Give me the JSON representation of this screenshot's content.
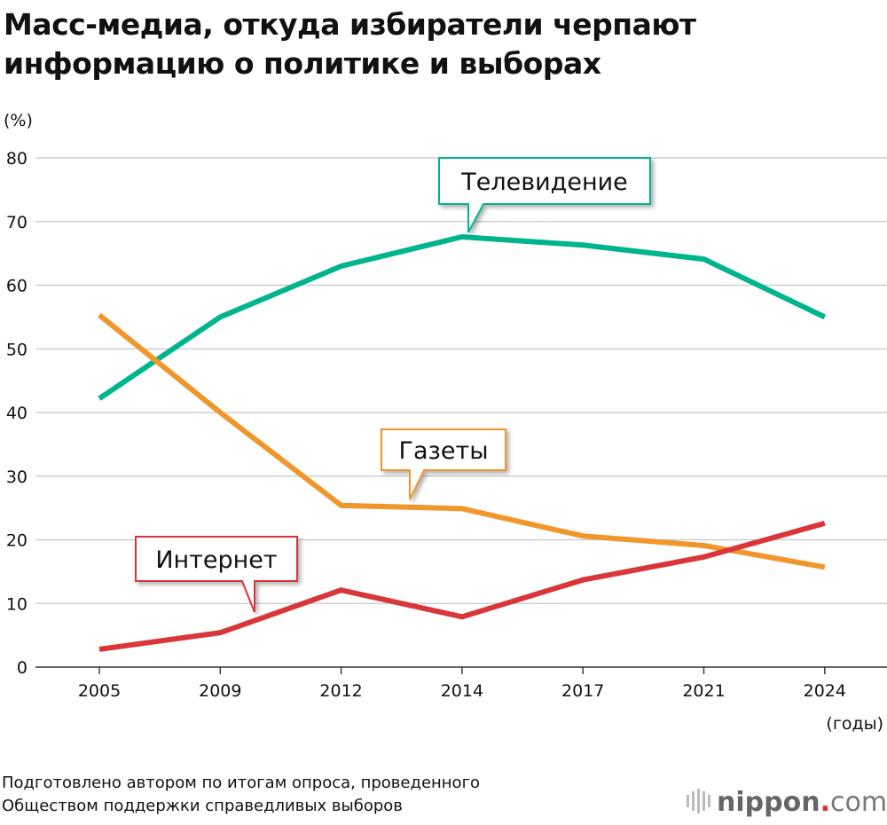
{
  "title_line1": "Масс-медиа, откуда избиратели черпают",
  "title_line2": "информацию о политике и выборах",
  "source_line1": "Подготовлено автором по итогам опроса, проведенного",
  "source_line2": "Обществом поддержки справедливых выборов",
  "logo": "nippon.com",
  "chart_data": {
    "type": "line",
    "ylabel": "(%)",
    "xlabel": "(годы)",
    "ylim": [
      0,
      80
    ],
    "yticks": [
      0,
      10,
      20,
      30,
      40,
      50,
      60,
      70,
      80
    ],
    "grid": true,
    "categories": [
      "2005",
      "2009",
      "2012",
      "2014",
      "2017",
      "2021",
      "2024"
    ],
    "series": [
      {
        "name": "Телевидение",
        "color": "#00b48e",
        "values": [
          42.2,
          55.0,
          63.0,
          67.6,
          66.3,
          64.1,
          55.0
        ]
      },
      {
        "name": "Газеты",
        "color": "#f0962a",
        "values": [
          55.3,
          40.0,
          25.4,
          24.9,
          20.6,
          19.1,
          15.7
        ]
      },
      {
        "name": "Интернет",
        "color": "#d9363a",
        "values": [
          2.8,
          5.4,
          12.1,
          7.9,
          13.7,
          17.3,
          22.6
        ]
      }
    ]
  }
}
